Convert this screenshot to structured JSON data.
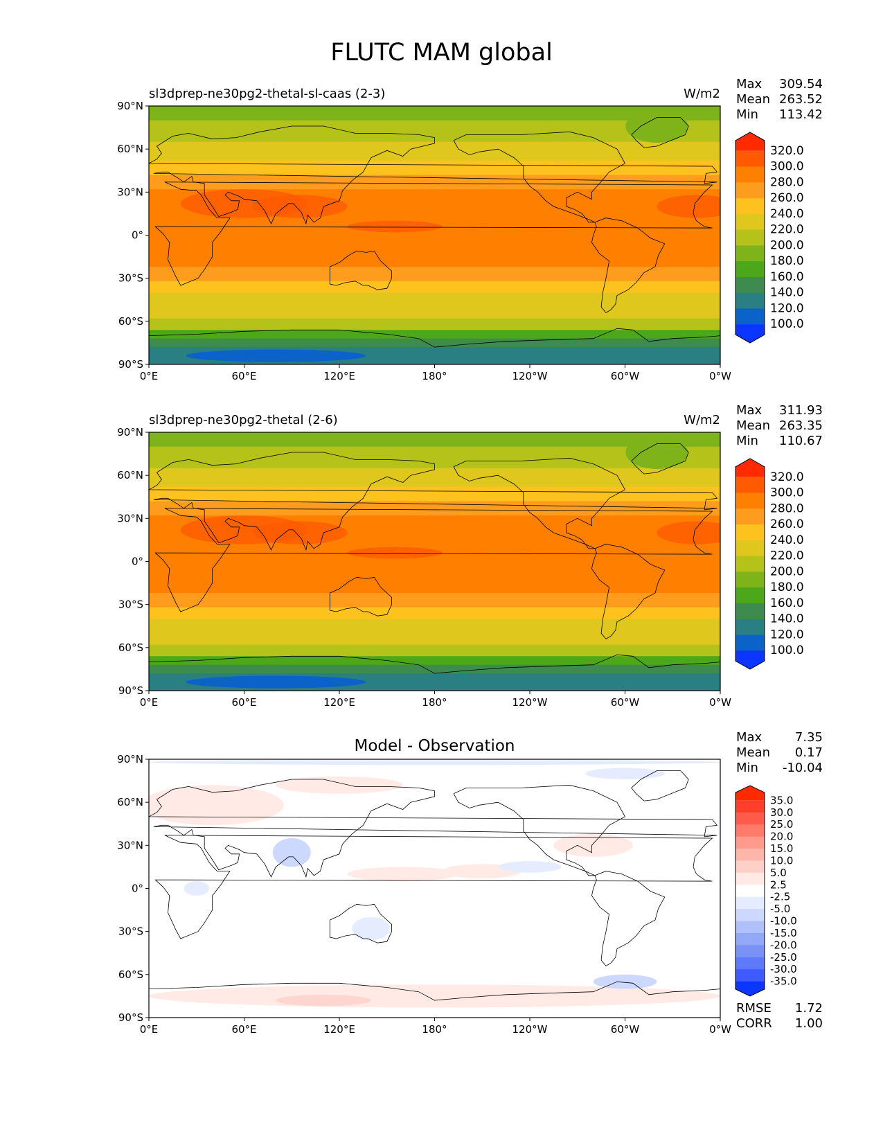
{
  "figure": {
    "title": "FLUTC MAM global"
  },
  "axes": {
    "lat_ticks": [
      "90°N",
      "60°N",
      "30°N",
      "0°",
      "30°S",
      "60°S",
      "90°S"
    ],
    "lon_ticks": [
      "0°E",
      "60°E",
      "120°E",
      "180°",
      "120°W",
      "60°W",
      "0°W"
    ]
  },
  "panels": [
    {
      "left_title": "sl3dprep-ne30pg2-thetal-sl-caas (2-3)",
      "right_title": "W/m2",
      "center_title": "",
      "stats": [
        {
          "label": "Max",
          "value": "309.54"
        },
        {
          "label": "Mean",
          "value": "263.52"
        },
        {
          "label": "Min",
          "value": "113.42"
        }
      ],
      "colorbar": {
        "levels": [
          "320.0",
          "300.0",
          "280.0",
          "260.0",
          "240.0",
          "220.0",
          "200.0",
          "180.0",
          "160.0",
          "140.0",
          "120.0",
          "100.0"
        ],
        "colors": [
          "#ff2a00",
          "#ff5a00",
          "#ff8000",
          "#fe9d1d",
          "#fec21f",
          "#e0c71e",
          "#b4c21a",
          "#7fb31a",
          "#4ca71a",
          "#3d8b4e",
          "#2a7f82",
          "#0b62c8",
          "#0a36ff"
        ]
      }
    },
    {
      "left_title": "sl3dprep-ne30pg2-thetal (2-6)",
      "right_title": "W/m2",
      "center_title": "",
      "stats": [
        {
          "label": "Max",
          "value": "311.93"
        },
        {
          "label": "Mean",
          "value": "263.35"
        },
        {
          "label": "Min",
          "value": "110.67"
        }
      ],
      "colorbar": {
        "levels": [
          "320.0",
          "300.0",
          "280.0",
          "260.0",
          "240.0",
          "220.0",
          "200.0",
          "180.0",
          "160.0",
          "140.0",
          "120.0",
          "100.0"
        ],
        "colors": [
          "#ff2a00",
          "#ff5a00",
          "#ff8000",
          "#fe9d1d",
          "#fec21f",
          "#e0c71e",
          "#b4c21a",
          "#7fb31a",
          "#4ca71a",
          "#3d8b4e",
          "#2a7f82",
          "#0b62c8",
          "#0a36ff"
        ]
      }
    },
    {
      "left_title": "",
      "right_title": "",
      "center_title": "Model - Observation",
      "stats": [
        {
          "label": "Max",
          "value": "7.35"
        },
        {
          "label": "Mean",
          "value": "0.17"
        },
        {
          "label": "Min",
          "value": "-10.04"
        }
      ],
      "metrics": [
        {
          "label": "RMSE",
          "value": "1.72"
        },
        {
          "label": "CORR",
          "value": "1.00"
        }
      ],
      "colorbar": {
        "levels": [
          "35.0",
          "30.0",
          "25.0",
          "20.0",
          "15.0",
          "10.0",
          "5.0",
          "2.5",
          "-2.5",
          "-5.0",
          "-10.0",
          "-15.0",
          "-20.0",
          "-25.0",
          "-30.0",
          "-35.0"
        ],
        "colors": [
          "#ff2a00",
          "#ff3f2a",
          "#ff5a4a",
          "#ff7a6a",
          "#ff9a8c",
          "#ffb6aa",
          "#ffd0c8",
          "#ffeae6",
          "#ffffff",
          "#e6ecff",
          "#cdd8ff",
          "#b0c0fb",
          "#93a8f7",
          "#7a92f6",
          "#5e7afa",
          "#3f5bff",
          "#0a36ff"
        ]
      }
    }
  ]
}
